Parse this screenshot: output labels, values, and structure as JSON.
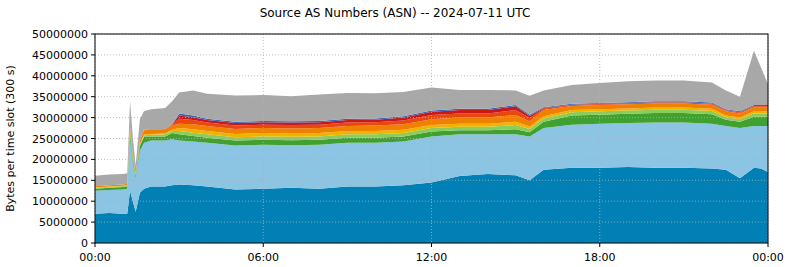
{
  "chart_data": {
    "type": "area",
    "stacked": true,
    "grid": true,
    "title": "Source AS Numbers (ASN) -- 2024-07-11 UTC",
    "y_label": "Bytes per time slot (300 s)",
    "xlim": [
      0,
      24
    ],
    "xticks": [
      {
        "value": 0,
        "label": "00:00"
      },
      {
        "value": 6,
        "label": "06:00"
      },
      {
        "value": 12,
        "label": "12:00"
      },
      {
        "value": 18,
        "label": "18:00"
      },
      {
        "value": 24,
        "label": "00:00"
      }
    ],
    "ylim": [
      0,
      50000000
    ],
    "yticks": [
      0,
      5000000,
      10000000,
      15000000,
      20000000,
      25000000,
      30000000,
      35000000,
      40000000,
      45000000,
      50000000
    ],
    "x": [
      0,
      0.5,
      1,
      1.15,
      1.25,
      1.35,
      1.45,
      1.6,
      1.75,
      2,
      2.5,
      2.75,
      3,
      3.5,
      4,
      5,
      6,
      7,
      8,
      9,
      10,
      11,
      12,
      13,
      14,
      15,
      15.5,
      16,
      17,
      18,
      19,
      20,
      21,
      22,
      22.5,
      23,
      23.5,
      23.75,
      24
    ],
    "series": [
      {
        "color": "#0080b4",
        "values": [
          7000000,
          7200000,
          7000000,
          7000000,
          12500000,
          10000000,
          7500000,
          12000000,
          13000000,
          13500000,
          13500000,
          13800000,
          14000000,
          13800000,
          13500000,
          12800000,
          13000000,
          13200000,
          13000000,
          13500000,
          13500000,
          13800000,
          14500000,
          16000000,
          16500000,
          16200000,
          15000000,
          17500000,
          18000000,
          18000000,
          18200000,
          18000000,
          18000000,
          17800000,
          17500000,
          15500000,
          18000000,
          17800000,
          17000000
        ]
      },
      {
        "color": "#8cc4e4",
        "values": [
          5500000,
          5500000,
          5800000,
          6000000,
          12000000,
          9000000,
          8000000,
          10000000,
          11000000,
          11000000,
          11000000,
          11000000,
          10500000,
          10500000,
          10500000,
          10500000,
          10500000,
          10200000,
          10500000,
          10500000,
          10500000,
          10500000,
          11000000,
          10000000,
          9500000,
          9800000,
          10500000,
          10000000,
          10300000,
          10500000,
          10500000,
          10800000,
          10800000,
          10700000,
          10500000,
          12000000,
          10000000,
          10200000,
          11000000
        ]
      },
      {
        "color": "#40a030",
        "values": [
          500000,
          500000,
          600000,
          600000,
          1500000,
          1000000,
          500000,
          1200000,
          1500000,
          1000000,
          1000000,
          1500000,
          1500000,
          1300000,
          1200000,
          1200000,
          1200000,
          1200000,
          1200000,
          1200000,
          1200000,
          1200000,
          1200000,
          1000000,
          1000000,
          1200000,
          1000000,
          1500000,
          2200000,
          2200000,
          2200000,
          2300000,
          2300000,
          2300000,
          1500000,
          1500000,
          2200000,
          2200000,
          2200000
        ]
      },
      {
        "color": "#8ccc5c",
        "values": [
          200000,
          200000,
          200000,
          200000,
          500000,
          300000,
          200000,
          300000,
          300000,
          400000,
          500000,
          500000,
          800000,
          800000,
          800000,
          800000,
          800000,
          800000,
          800000,
          800000,
          800000,
          800000,
          800000,
          800000,
          800000,
          1000000,
          800000,
          800000,
          800000,
          800000,
          800000,
          800000,
          800000,
          800000,
          600000,
          600000,
          800000,
          800000,
          800000
        ]
      },
      {
        "color": "#f0b400",
        "values": [
          100000,
          100000,
          100000,
          100000,
          300000,
          200000,
          100000,
          200000,
          200000,
          200000,
          200000,
          300000,
          700000,
          800000,
          800000,
          800000,
          800000,
          800000,
          800000,
          800000,
          800000,
          800000,
          700000,
          700000,
          700000,
          800000,
          600000,
          500000,
          500000,
          500000,
          500000,
          500000,
          500000,
          500000,
          400000,
          400000,
          500000,
          500000,
          500000
        ]
      },
      {
        "color": "#f08000",
        "values": [
          300000,
          300000,
          300000,
          300000,
          1000000,
          600000,
          200000,
          800000,
          1000000,
          1000000,
          1000000,
          1000000,
          1000000,
          1200000,
          1200000,
          1200000,
          1200000,
          1200000,
          1200000,
          1200000,
          1300000,
          1300000,
          1400000,
          1500000,
          1500000,
          1600000,
          1200000,
          1500000,
          1000000,
          1000000,
          1000000,
          1000000,
          1000000,
          1000000,
          1000000,
          1000000,
          1000000,
          1000000,
          1000000
        ]
      },
      {
        "color": "#e84810",
        "values": [
          0,
          0,
          0,
          0,
          100000,
          100000,
          0,
          100000,
          100000,
          100000,
          100000,
          200000,
          1200000,
          1000000,
          800000,
          800000,
          800000,
          800000,
          800000,
          800000,
          800000,
          900000,
          1000000,
          1000000,
          1000000,
          1200000,
          800000,
          300000,
          200000,
          200000,
          200000,
          200000,
          200000,
          200000,
          200000,
          200000,
          200000,
          200000,
          200000
        ]
      },
      {
        "color": "#c81818",
        "values": [
          0,
          0,
          0,
          0,
          0,
          0,
          0,
          0,
          0,
          0,
          0,
          100000,
          800000,
          700000,
          600000,
          600000,
          600000,
          600000,
          600000,
          600000,
          600000,
          700000,
          800000,
          800000,
          800000,
          900000,
          500000,
          200000,
          100000,
          100000,
          100000,
          100000,
          100000,
          100000,
          100000,
          100000,
          100000,
          100000,
          100000
        ]
      },
      {
        "color": "#3c64b4",
        "values": [
          0,
          0,
          0,
          0,
          0,
          0,
          0,
          0,
          0,
          0,
          0,
          0,
          500000,
          400000,
          300000,
          300000,
          300000,
          300000,
          300000,
          300000,
          300000,
          300000,
          300000,
          300000,
          300000,
          300000,
          300000,
          200000,
          200000,
          200000,
          200000,
          200000,
          200000,
          200000,
          200000,
          200000,
          200000,
          200000,
          200000
        ]
      },
      {
        "color": "#a8a8a8",
        "values": [
          2500000,
          2600000,
          2500000,
          2500000,
          6000000,
          4000000,
          2000000,
          5000000,
          4500000,
          4800000,
          5000000,
          5500000,
          5000000,
          6000000,
          6000000,
          6300000,
          6200000,
          6000000,
          6300000,
          6200000,
          6000000,
          5800000,
          5500000,
          4500000,
          4500000,
          3500000,
          4500000,
          4000000,
          4500000,
          4800000,
          5000000,
          5000000,
          5000000,
          4800000,
          4500000,
          3500000,
          13000000,
          9000000,
          5000000
        ]
      }
    ]
  }
}
